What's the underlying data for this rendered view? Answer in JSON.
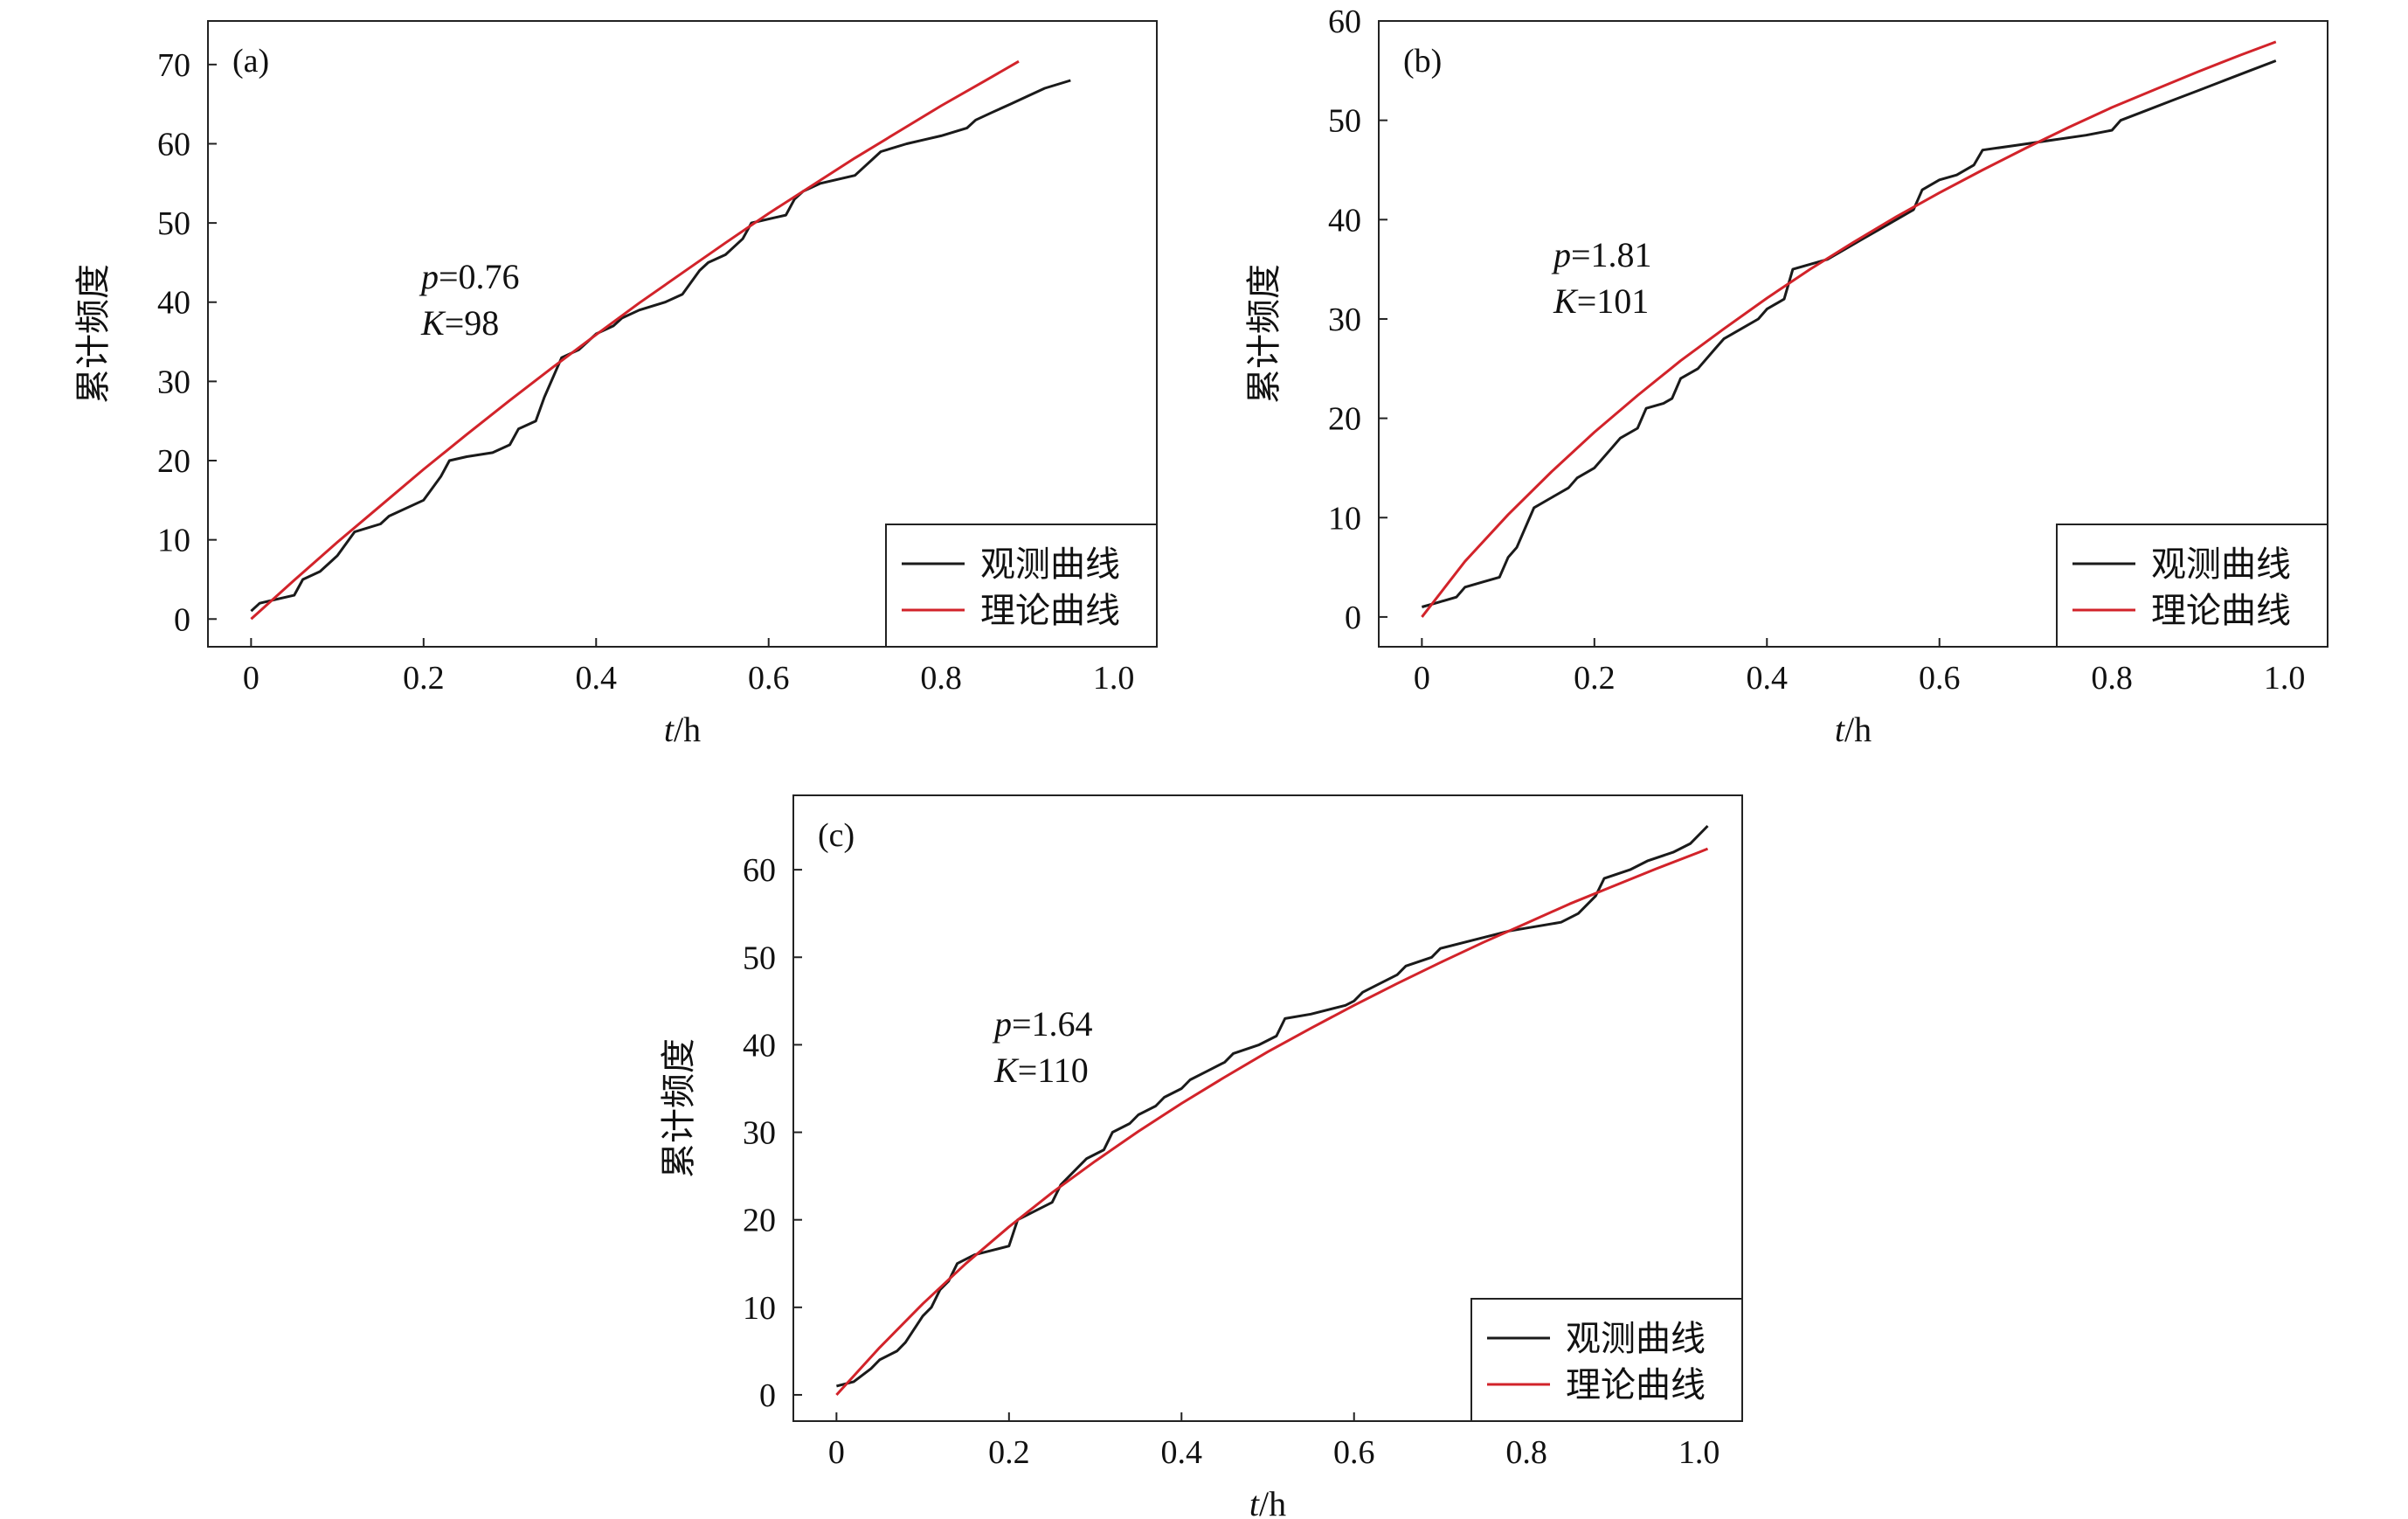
{
  "legend": {
    "observed": "观测曲线",
    "theory": "理论曲线"
  },
  "colors": {
    "observed": "#1a1a1a",
    "theory": "#d2232a",
    "axis": "#222222"
  },
  "chart_data": [
    {
      "type": "line",
      "panel": "(a)",
      "xlabel_italic": "t",
      "xlabel_unit": "/h",
      "ylabel": "累计频度",
      "xlim": [
        -0.05,
        1.05
      ],
      "ylim": [
        -3.5,
        75.5
      ],
      "xticks": [
        0,
        0.2,
        0.4,
        0.6,
        0.8,
        1.0
      ],
      "xtick_labels": [
        "0",
        "0.2",
        "0.4",
        "0.6",
        "0.8",
        "1.0"
      ],
      "yticks": [
        0,
        10,
        20,
        30,
        40,
        50,
        60,
        70
      ],
      "params": {
        "p_sym": "p",
        "p_val": "=0.76",
        "k_sym": "K",
        "k_val": "=98"
      },
      "legend_position": "bottom-right",
      "series": [
        {
          "name": "观测曲线",
          "points": [
            [
              0,
              1
            ],
            [
              0.01,
              2
            ],
            [
              0.03,
              2.5
            ],
            [
              0.05,
              3
            ],
            [
              0.06,
              5
            ],
            [
              0.08,
              6
            ],
            [
              0.1,
              8
            ],
            [
              0.12,
              11
            ],
            [
              0.15,
              12
            ],
            [
              0.16,
              13
            ],
            [
              0.2,
              15
            ],
            [
              0.22,
              18
            ],
            [
              0.23,
              20
            ],
            [
              0.25,
              20.5
            ],
            [
              0.28,
              21
            ],
            [
              0.3,
              22
            ],
            [
              0.31,
              24
            ],
            [
              0.33,
              25
            ],
            [
              0.34,
              28
            ],
            [
              0.36,
              33
            ],
            [
              0.38,
              34
            ],
            [
              0.39,
              35
            ],
            [
              0.4,
              36
            ],
            [
              0.42,
              37
            ],
            [
              0.43,
              38
            ],
            [
              0.45,
              39
            ],
            [
              0.48,
              40
            ],
            [
              0.5,
              41
            ],
            [
              0.52,
              44
            ],
            [
              0.53,
              45
            ],
            [
              0.55,
              46
            ],
            [
              0.56,
              47
            ],
            [
              0.57,
              48
            ],
            [
              0.58,
              50
            ],
            [
              0.62,
              51
            ],
            [
              0.63,
              53
            ],
            [
              0.64,
              54
            ],
            [
              0.66,
              55
            ],
            [
              0.7,
              56
            ],
            [
              0.71,
              57
            ],
            [
              0.72,
              58
            ],
            [
              0.73,
              59
            ],
            [
              0.76,
              60
            ],
            [
              0.78,
              60.5
            ],
            [
              0.8,
              61
            ],
            [
              0.83,
              62
            ],
            [
              0.84,
              63
            ],
            [
              0.86,
              64
            ],
            [
              0.88,
              65
            ],
            [
              0.9,
              66
            ],
            [
              0.92,
              67
            ],
            [
              0.95,
              68
            ]
          ]
        },
        {
          "name": "理论曲线",
          "points": [
            [
              0,
              0
            ],
            [
              0.05,
              4.9
            ],
            [
              0.1,
              9.7
            ],
            [
              0.15,
              14.3
            ],
            [
              0.2,
              18.9
            ],
            [
              0.25,
              23.3
            ],
            [
              0.3,
              27.6
            ],
            [
              0.35,
              31.8
            ],
            [
              0.4,
              35.9
            ],
            [
              0.45,
              39.9
            ],
            [
              0.5,
              43.7
            ],
            [
              0.55,
              47.5
            ],
            [
              0.6,
              51.2
            ],
            [
              0.65,
              54.7
            ],
            [
              0.7,
              58.2
            ],
            [
              0.75,
              61.5
            ],
            [
              0.8,
              64.8
            ],
            [
              0.85,
              67.9
            ],
            [
              0.89,
              70.4
            ]
          ]
        }
      ]
    },
    {
      "type": "line",
      "panel": "(b)",
      "xlabel_italic": "t",
      "xlabel_unit": "/h",
      "ylabel": "累计频度",
      "xlim": [
        -0.05,
        1.05
      ],
      "ylim": [
        -3,
        60
      ],
      "xticks": [
        0,
        0.2,
        0.4,
        0.6,
        0.8,
        1.0
      ],
      "xtick_labels": [
        "0",
        "0.2",
        "0.4",
        "0.6",
        "0.8",
        "1.0"
      ],
      "yticks": [
        0,
        10,
        20,
        30,
        40,
        50,
        60
      ],
      "params": {
        "p_sym": "p",
        "p_val": "=1.81",
        "k_sym": "K",
        "k_val": "=101"
      },
      "legend_position": "bottom-right",
      "series": [
        {
          "name": "观测曲线",
          "points": [
            [
              0,
              1
            ],
            [
              0.02,
              1.5
            ],
            [
              0.04,
              2
            ],
            [
              0.05,
              3
            ],
            [
              0.07,
              3.5
            ],
            [
              0.09,
              4
            ],
            [
              0.1,
              6
            ],
            [
              0.11,
              7
            ],
            [
              0.12,
              9
            ],
            [
              0.13,
              11
            ],
            [
              0.15,
              12
            ],
            [
              0.17,
              13
            ],
            [
              0.18,
              14
            ],
            [
              0.2,
              15
            ],
            [
              0.22,
              17
            ],
            [
              0.23,
              18
            ],
            [
              0.25,
              19
            ],
            [
              0.26,
              21
            ],
            [
              0.28,
              21.5
            ],
            [
              0.29,
              22
            ],
            [
              0.3,
              24
            ],
            [
              0.32,
              25
            ],
            [
              0.34,
              27
            ],
            [
              0.35,
              28
            ],
            [
              0.37,
              29
            ],
            [
              0.39,
              30
            ],
            [
              0.4,
              31
            ],
            [
              0.42,
              32
            ],
            [
              0.43,
              35
            ],
            [
              0.45,
              35.5
            ],
            [
              0.47,
              36
            ],
            [
              0.49,
              37
            ],
            [
              0.51,
              38
            ],
            [
              0.53,
              39
            ],
            [
              0.55,
              40
            ],
            [
              0.57,
              41
            ],
            [
              0.58,
              43
            ],
            [
              0.6,
              44
            ],
            [
              0.62,
              44.5
            ],
            [
              0.64,
              45.5
            ],
            [
              0.65,
              47
            ],
            [
              0.69,
              47.5
            ],
            [
              0.73,
              48
            ],
            [
              0.77,
              48.5
            ],
            [
              0.8,
              49
            ],
            [
              0.81,
              50
            ],
            [
              0.84,
              51
            ],
            [
              0.87,
              52
            ],
            [
              0.9,
              53
            ],
            [
              0.93,
              54
            ],
            [
              0.96,
              55
            ],
            [
              0.99,
              56
            ]
          ]
        },
        {
          "name": "理论曲线",
          "points": [
            [
              0,
              0
            ],
            [
              0.05,
              5.6
            ],
            [
              0.1,
              10.3
            ],
            [
              0.15,
              14.6
            ],
            [
              0.2,
              18.6
            ],
            [
              0.25,
              22.3
            ],
            [
              0.3,
              25.8
            ],
            [
              0.35,
              29
            ],
            [
              0.4,
              32.1
            ],
            [
              0.45,
              35
            ],
            [
              0.5,
              37.7
            ],
            [
              0.55,
              40.3
            ],
            [
              0.6,
              42.7
            ],
            [
              0.65,
              45
            ],
            [
              0.7,
              47.2
            ],
            [
              0.75,
              49.3
            ],
            [
              0.8,
              51.3
            ],
            [
              0.85,
              53.1
            ],
            [
              0.9,
              54.9
            ],
            [
              0.95,
              56.6
            ],
            [
              0.99,
              57.9
            ]
          ]
        }
      ]
    },
    {
      "type": "line",
      "panel": "(c)",
      "xlabel_italic": "t",
      "xlabel_unit": "/h",
      "ylabel": "累计频度",
      "xlim": [
        -0.05,
        1.05
      ],
      "ylim": [
        -3,
        68.5
      ],
      "xticks": [
        0,
        0.2,
        0.4,
        0.6,
        0.8,
        1.0
      ],
      "xtick_labels": [
        "0",
        "0.2",
        "0.4",
        "0.6",
        "0.8",
        "1.0"
      ],
      "yticks": [
        0,
        10,
        20,
        30,
        40,
        50,
        60
      ],
      "params": {
        "p_sym": "p",
        "p_val": "=1.64",
        "k_sym": "K",
        "k_val": "=110"
      },
      "legend_position": "bottom-right",
      "series": [
        {
          "name": "观测曲线",
          "points": [
            [
              0,
              1
            ],
            [
              0.02,
              1.5
            ],
            [
              0.04,
              3
            ],
            [
              0.05,
              4
            ],
            [
              0.07,
              5
            ],
            [
              0.08,
              6
            ],
            [
              0.1,
              9
            ],
            [
              0.11,
              10
            ],
            [
              0.12,
              12
            ],
            [
              0.13,
              13
            ],
            [
              0.14,
              15
            ],
            [
              0.16,
              16
            ],
            [
              0.18,
              16.5
            ],
            [
              0.2,
              17
            ],
            [
              0.21,
              20
            ],
            [
              0.23,
              21
            ],
            [
              0.25,
              22
            ],
            [
              0.26,
              24
            ],
            [
              0.28,
              26
            ],
            [
              0.29,
              27
            ],
            [
              0.31,
              28
            ],
            [
              0.32,
              30
            ],
            [
              0.34,
              31
            ],
            [
              0.35,
              32
            ],
            [
              0.37,
              33
            ],
            [
              0.38,
              34
            ],
            [
              0.4,
              35
            ],
            [
              0.41,
              36
            ],
            [
              0.43,
              37
            ],
            [
              0.45,
              38
            ],
            [
              0.46,
              39
            ],
            [
              0.49,
              40
            ],
            [
              0.51,
              41
            ],
            [
              0.52,
              43
            ],
            [
              0.55,
              43.5
            ],
            [
              0.57,
              44
            ],
            [
              0.59,
              44.5
            ],
            [
              0.6,
              45
            ],
            [
              0.61,
              46
            ],
            [
              0.63,
              47
            ],
            [
              0.65,
              48
            ],
            [
              0.66,
              49
            ],
            [
              0.69,
              50
            ],
            [
              0.7,
              51
            ],
            [
              0.74,
              52
            ],
            [
              0.76,
              52.5
            ],
            [
              0.78,
              53
            ],
            [
              0.81,
              53.5
            ],
            [
              0.84,
              54
            ],
            [
              0.86,
              55
            ],
            [
              0.88,
              57
            ],
            [
              0.89,
              59
            ],
            [
              0.92,
              60
            ],
            [
              0.94,
              61
            ],
            [
              0.97,
              62
            ],
            [
              0.99,
              63
            ],
            [
              1.01,
              65
            ]
          ]
        },
        {
          "name": "理论曲线",
          "points": [
            [
              0,
              0
            ],
            [
              0.05,
              5.4
            ],
            [
              0.1,
              10.4
            ],
            [
              0.15,
              15
            ],
            [
              0.2,
              19.2
            ],
            [
              0.25,
              23.1
            ],
            [
              0.3,
              26.7
            ],
            [
              0.35,
              30.1
            ],
            [
              0.4,
              33.3
            ],
            [
              0.45,
              36.3
            ],
            [
              0.5,
              39.2
            ],
            [
              0.55,
              41.9
            ],
            [
              0.6,
              44.5
            ],
            [
              0.65,
              47
            ],
            [
              0.7,
              49.4
            ],
            [
              0.75,
              51.7
            ],
            [
              0.8,
              53.9
            ],
            [
              0.85,
              56.1
            ],
            [
              0.9,
              58.1
            ],
            [
              0.95,
              60.1
            ],
            [
              1.0,
              62
            ],
            [
              1.01,
              62.4
            ]
          ]
        }
      ]
    }
  ]
}
